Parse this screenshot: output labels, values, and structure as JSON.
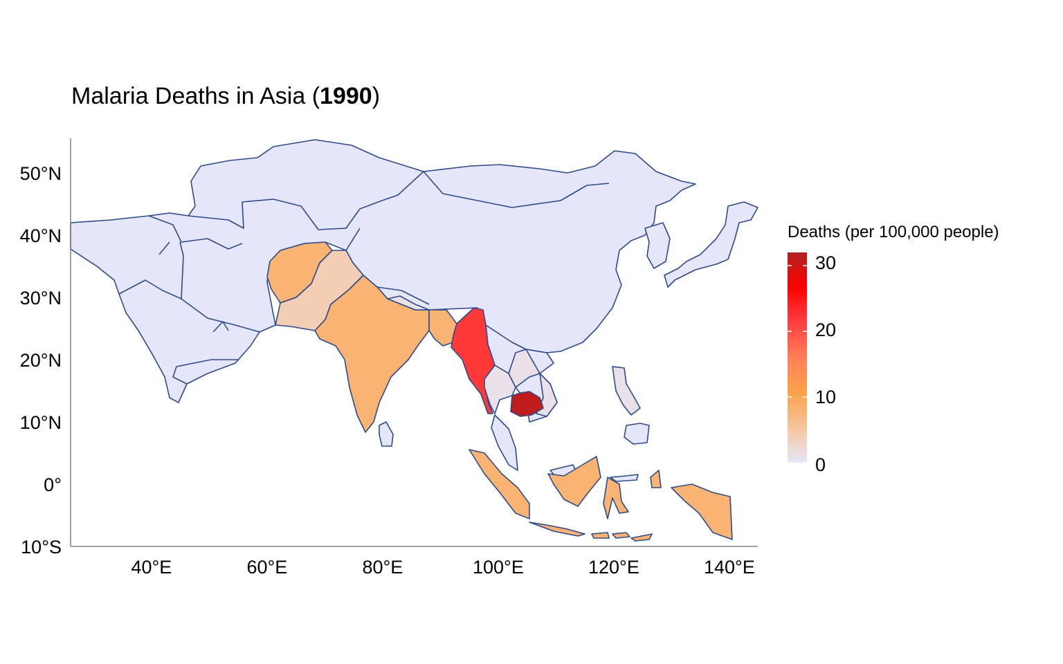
{
  "title": {
    "prefix": "Malaria Deaths in Asia (",
    "year": "1990",
    "suffix": ")"
  },
  "legend": {
    "title": "Deaths (per 100,000 people)",
    "ticks": [
      "30",
      "20",
      "10",
      "0"
    ],
    "tick_values": [
      30,
      20,
      10,
      0
    ],
    "range": [
      0,
      32
    ],
    "gradient": [
      "#e6e6fa",
      "#f7c59c",
      "#faa24b",
      "#ff7f5a",
      "#ff4040",
      "#ff0000",
      "#b22222"
    ]
  },
  "axes": {
    "x_ticks": [
      {
        "value": 40,
        "label": "40°E"
      },
      {
        "value": 60,
        "label": "60°E"
      },
      {
        "value": 80,
        "label": "80°E"
      },
      {
        "value": 100,
        "label": "100°E"
      },
      {
        "value": 120,
        "label": "120°E"
      },
      {
        "value": 140,
        "label": "140°E"
      }
    ],
    "y_ticks": [
      {
        "value": 50,
        "label": "50°N"
      },
      {
        "value": 40,
        "label": "40°N"
      },
      {
        "value": 30,
        "label": "30°N"
      },
      {
        "value": 20,
        "label": "20°N"
      },
      {
        "value": 10,
        "label": "10°N"
      },
      {
        "value": 0,
        "label": "0°"
      },
      {
        "value": -10,
        "label": "10°S"
      }
    ],
    "xlim": [
      26,
      145
    ],
    "ylim": [
      -10,
      55
    ]
  },
  "chart_data": {
    "type": "choropleth",
    "title": "Malaria Deaths in Asia (1990)",
    "value_label": "Deaths (per 100,000 people)",
    "regions": [
      {
        "name": "Cambodia",
        "value": 31
      },
      {
        "name": "Myanmar",
        "value": 22
      },
      {
        "name": "India",
        "value": 8
      },
      {
        "name": "Afghanistan",
        "value": 8
      },
      {
        "name": "Indonesia",
        "value": 8
      },
      {
        "name": "Bangladesh",
        "value": 8
      },
      {
        "name": "Pakistan",
        "value": 4
      },
      {
        "name": "Thailand",
        "value": 1
      },
      {
        "name": "Laos",
        "value": 1
      },
      {
        "name": "Vietnam",
        "value": 1
      },
      {
        "name": "Philippines",
        "value": 1
      },
      {
        "name": "Nepal",
        "value": 1
      },
      {
        "name": "Rest of Asia",
        "value": 0
      }
    ]
  }
}
